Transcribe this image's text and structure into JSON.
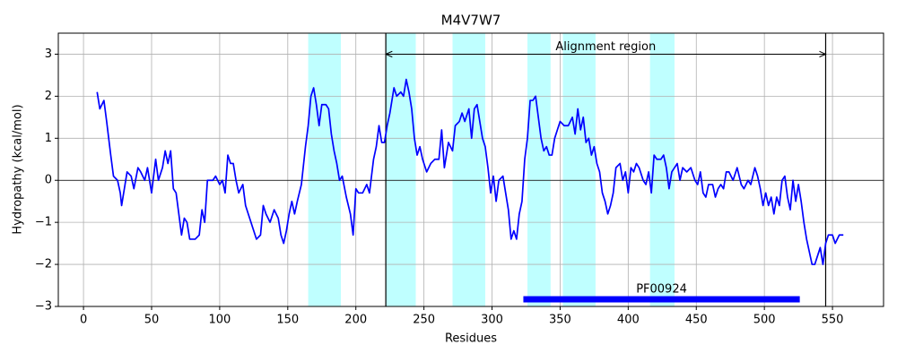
{
  "chart_data": {
    "type": "line",
    "title": "M4V7W7",
    "xlabel": "Residues",
    "ylabel": "Hydropathy (kcal/mol)",
    "x": [
      10,
      12,
      15,
      17,
      20,
      22,
      25,
      27,
      28,
      30,
      32,
      35,
      37,
      40,
      42,
      45,
      47,
      50,
      53,
      55,
      58,
      60,
      62,
      64,
      66,
      68,
      70,
      72,
      74,
      76,
      78,
      82,
      85,
      87,
      89,
      91,
      95,
      97,
      100,
      102,
      104,
      106,
      108,
      110,
      112,
      114,
      117,
      119,
      121,
      123,
      125,
      127,
      130,
      132,
      134,
      137,
      140,
      143,
      145,
      147,
      149,
      151,
      153,
      155,
      157,
      160,
      163,
      165,
      167,
      169,
      171,
      173,
      175,
      178,
      180,
      182,
      184,
      186,
      188,
      190,
      193,
      196,
      198,
      200,
      202,
      205,
      208,
      210,
      213,
      215,
      217,
      219,
      221,
      223,
      225,
      228,
      230,
      233,
      235,
      237,
      239,
      241,
      243,
      245,
      247,
      249,
      252,
      255,
      258,
      261,
      263,
      265,
      268,
      271,
      273,
      276,
      278,
      280,
      283,
      285,
      287,
      289,
      291,
      293,
      295,
      297,
      299,
      301,
      303,
      305,
      308,
      310,
      312,
      314,
      316,
      318,
      320,
      322,
      324,
      326,
      328,
      330,
      332,
      334,
      336,
      338,
      340,
      342,
      344,
      346,
      348,
      350,
      353,
      356,
      359,
      361,
      363,
      365,
      367,
      369,
      371,
      373,
      375,
      377,
      379,
      381,
      383,
      385,
      387,
      389,
      391,
      394,
      396,
      398,
      400,
      402,
      404,
      406,
      408,
      411,
      413,
      415,
      417,
      419,
      421,
      424,
      426,
      428,
      430,
      432,
      434,
      436,
      438,
      440,
      443,
      446,
      449,
      451,
      453,
      455,
      457,
      459,
      462,
      464,
      466,
      468,
      470,
      472,
      474,
      477,
      480,
      483,
      485,
      488,
      490,
      493,
      495,
      497,
      499,
      501,
      503,
      505,
      507,
      509,
      511,
      513,
      515,
      517,
      519,
      521,
      523,
      525,
      527,
      529,
      531,
      533,
      535,
      537,
      539,
      541,
      543,
      545,
      547,
      550,
      552,
      555,
      558
    ],
    "values": [
      2.1,
      1.7,
      1.9,
      1.4,
      0.6,
      0.1,
      0.0,
      -0.3,
      -0.6,
      -0.2,
      0.2,
      0.1,
      -0.2,
      0.3,
      0.2,
      0.0,
      0.3,
      -0.3,
      0.5,
      0.0,
      0.3,
      0.7,
      0.4,
      0.7,
      -0.2,
      -0.3,
      -0.8,
      -1.3,
      -0.9,
      -1.0,
      -1.4,
      -1.4,
      -1.3,
      -0.7,
      -1.0,
      0.0,
      0.0,
      0.1,
      -0.1,
      0.0,
      -0.3,
      0.6,
      0.4,
      0.4,
      0.0,
      -0.3,
      -0.1,
      -0.6,
      -0.8,
      -1.0,
      -1.2,
      -1.4,
      -1.3,
      -0.6,
      -0.8,
      -1.0,
      -0.7,
      -0.9,
      -1.3,
      -1.5,
      -1.2,
      -0.8,
      -0.5,
      -0.8,
      -0.5,
      -0.1,
      0.8,
      1.3,
      2.0,
      2.2,
      1.8,
      1.3,
      1.8,
      1.8,
      1.7,
      1.1,
      0.7,
      0.4,
      0.0,
      0.1,
      -0.4,
      -0.8,
      -1.3,
      -0.2,
      -0.3,
      -0.3,
      -0.1,
      -0.3,
      0.5,
      0.8,
      1.3,
      0.9,
      0.9,
      1.3,
      1.6,
      2.2,
      2.0,
      2.1,
      2.0,
      2.4,
      2.1,
      1.7,
      1.0,
      0.6,
      0.8,
      0.5,
      0.2,
      0.4,
      0.5,
      0.5,
      1.2,
      0.3,
      0.9,
      0.7,
      1.3,
      1.4,
      1.6,
      1.4,
      1.7,
      1.0,
      1.7,
      1.8,
      1.4,
      1.0,
      0.8,
      0.3,
      -0.3,
      0.1,
      -0.5,
      0.0,
      0.1,
      -0.3,
      -0.7,
      -1.4,
      -1.2,
      -1.4,
      -0.8,
      -0.5,
      0.5,
      1.0,
      1.9,
      1.9,
      2.0,
      1.5,
      1.0,
      0.7,
      0.8,
      0.6,
      0.6,
      1.0,
      1.2,
      1.4,
      1.3,
      1.3,
      1.5,
      1.1,
      1.7,
      1.2,
      1.5,
      0.9,
      1.0,
      0.6,
      0.8,
      0.4,
      0.2,
      -0.3,
      -0.5,
      -0.8,
      -0.6,
      -0.3,
      0.3,
      0.4,
      0.0,
      0.2,
      -0.3,
      0.3,
      0.2,
      0.4,
      0.3,
      0.0,
      -0.1,
      0.2,
      -0.3,
      0.6,
      0.5,
      0.5,
      0.6,
      0.3,
      -0.2,
      0.2,
      0.3,
      0.4,
      0.0,
      0.3,
      0.2,
      0.3,
      0.0,
      -0.1,
      0.2,
      -0.3,
      -0.4,
      -0.1,
      -0.1,
      -0.4,
      -0.2,
      -0.1,
      -0.2,
      0.2,
      0.2,
      0.0,
      0.3,
      -0.1,
      -0.2,
      0.0,
      -0.1,
      0.3,
      0.1,
      -0.2,
      -0.6,
      -0.3,
      -0.6,
      -0.4,
      -0.8,
      -0.4,
      -0.6,
      0.0,
      0.1,
      -0.4,
      -0.7,
      0.0,
      -0.5,
      -0.1,
      -0.5,
      -1.0,
      -1.4,
      -1.7,
      -2.0,
      -2.0,
      -1.8,
      -1.6,
      -2.0,
      -1.5,
      -1.3,
      -1.3,
      -1.5,
      -1.3,
      -1.3
    ],
    "color": "#0000ff",
    "xlim": [
      -18.5,
      587.5
    ],
    "ylim": [
      -3,
      3.5
    ],
    "xticks": [
      0,
      50,
      100,
      150,
      200,
      250,
      300,
      350,
      400,
      450,
      500,
      550
    ],
    "yticks": [
      {
        "value": -3,
        "label": "−3"
      },
      {
        "value": -2,
        "label": "−2"
      },
      {
        "value": -1,
        "label": "−1"
      },
      0,
      1,
      2,
      3
    ],
    "grid": true,
    "highlight_regions": [
      [
        165,
        189
      ],
      [
        222,
        244
      ],
      [
        271,
        295
      ],
      [
        326,
        343
      ],
      [
        352,
        376
      ],
      [
        416,
        434
      ]
    ],
    "highlight_color": "#bfffff",
    "vlines": [
      222,
      545
    ],
    "annotation": {
      "text": "Alignment region",
      "x": [
        222,
        545
      ],
      "y": 3
    },
    "domain": {
      "label": "PF00924",
      "x": [
        323,
        526
      ],
      "y": -2.83,
      "color": "#0000ff"
    }
  }
}
